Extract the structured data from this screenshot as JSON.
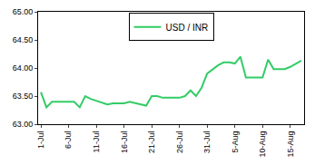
{
  "chart_data": {
    "type": "line",
    "categories": [
      "1-Jul",
      null,
      null,
      null,
      null,
      "6-Jul",
      null,
      null,
      null,
      null,
      "11-Jul",
      null,
      null,
      null,
      null,
      "16-Jul",
      null,
      null,
      null,
      null,
      "21-Jul",
      null,
      null,
      null,
      null,
      "26-Jul",
      null,
      null,
      null,
      null,
      "31-Jul",
      null,
      null,
      null,
      null,
      "5-Aug",
      null,
      null,
      null,
      null,
      "10-Aug",
      null,
      null,
      null,
      null,
      "15-Aug",
      null,
      null
    ],
    "series": [
      {
        "name": "USD / INR",
        "color": "#33cc66",
        "values": [
          63.57,
          63.3,
          63.4,
          63.4,
          63.4,
          63.4,
          63.4,
          63.3,
          63.5,
          63.45,
          63.42,
          63.38,
          63.35,
          63.37,
          63.37,
          63.37,
          63.4,
          63.38,
          63.35,
          63.33,
          63.5,
          63.5,
          63.47,
          63.47,
          63.47,
          63.47,
          63.5,
          63.6,
          63.5,
          63.65,
          63.9,
          63.97,
          64.05,
          64.1,
          64.1,
          64.08,
          64.2,
          63.83,
          63.83,
          63.83,
          63.83,
          64.15,
          63.98,
          63.98,
          63.98,
          64.02,
          64.08,
          64.13
        ]
      }
    ],
    "ylim": [
      63,
      65
    ],
    "yticks": [
      {
        "value": 63,
        "label": "63.00"
      },
      {
        "value": 63.5,
        "label": "63.50"
      },
      {
        "value": 64,
        "label": "64.00"
      },
      {
        "value": 64.5,
        "label": "64.50"
      },
      {
        "value": 65,
        "label": "65.00"
      }
    ],
    "grid": false,
    "legend": "top"
  }
}
